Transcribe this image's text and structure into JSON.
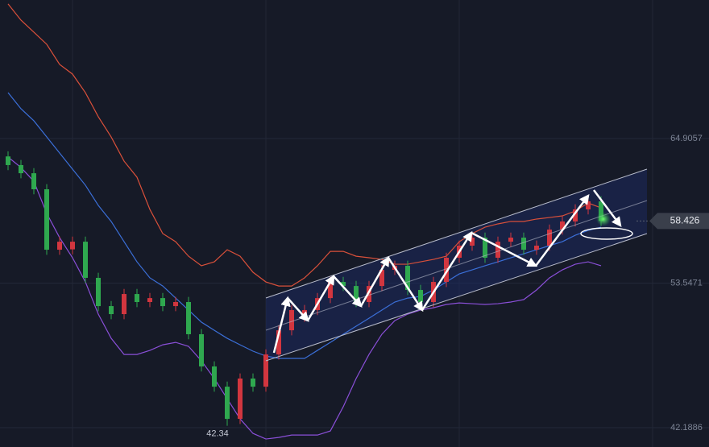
{
  "chart_data": {
    "type": "candlestick",
    "ylim": [
      40.67,
      75.79
    ],
    "yticks": [
      42.1886,
      53.5471,
      64.9057
    ],
    "grid": true,
    "candle_colors": {
      "up": "#d2363f",
      "down": "#2fa84f"
    },
    "candles": [
      [
        63.5,
        63.9,
        62.42,
        62.82
      ],
      [
        62.82,
        63.22,
        61.78,
        62.18
      ],
      [
        62.18,
        62.58,
        60.52,
        60.92
      ],
      [
        60.92,
        61.32,
        55.77,
        56.17
      ],
      [
        56.17,
        57.2,
        55.77,
        56.8
      ],
      [
        56.2,
        57.2,
        55.8,
        56.8
      ],
      [
        56.8,
        57.2,
        53.56,
        53.96
      ],
      [
        53.96,
        54.36,
        51.34,
        51.74
      ],
      [
        51.74,
        52.14,
        50.71,
        51.11
      ],
      [
        51.11,
        53.09,
        50.71,
        52.69
      ],
      [
        52.69,
        53.09,
        51.66,
        52.06
      ],
      [
        52.06,
        52.77,
        51.66,
        52.37
      ],
      [
        52.37,
        52.77,
        51.34,
        51.74
      ],
      [
        51.74,
        52.46,
        51.34,
        52.06
      ],
      [
        52.06,
        52.46,
        49.13,
        49.53
      ],
      [
        49.53,
        49.93,
        46.6,
        47.0
      ],
      [
        47.0,
        47.4,
        45.01,
        45.41
      ],
      [
        45.41,
        45.81,
        42.34,
        42.88
      ],
      [
        42.88,
        46.45,
        42.48,
        46.05
      ],
      [
        46.05,
        46.45,
        45.01,
        45.41
      ],
      [
        45.41,
        48.34,
        45.01,
        47.94
      ],
      [
        47.94,
        50.24,
        47.54,
        49.84
      ],
      [
        49.84,
        51.83,
        49.44,
        51.43
      ],
      [
        50.9,
        51.83,
        50.5,
        51.43
      ],
      [
        51.43,
        52.77,
        51.03,
        52.37
      ],
      [
        52.37,
        54.04,
        51.97,
        53.64
      ],
      [
        53.64,
        54.04,
        52.92,
        53.32
      ],
      [
        53.32,
        53.72,
        51.66,
        52.06
      ],
      [
        52.06,
        53.72,
        51.66,
        53.32
      ],
      [
        53.32,
        54.99,
        52.92,
        54.59
      ],
      [
        54.59,
        55.31,
        54.19,
        54.91
      ],
      [
        54.91,
        55.31,
        52.61,
        53.01
      ],
      [
        53.01,
        53.41,
        51.66,
        52.06
      ],
      [
        52.06,
        54.04,
        51.66,
        53.64
      ],
      [
        53.64,
        55.94,
        53.24,
        55.54
      ],
      [
        55.54,
        56.89,
        55.14,
        56.49
      ],
      [
        56.49,
        57.52,
        56.09,
        57.12
      ],
      [
        57.12,
        57.52,
        55.14,
        55.54
      ],
      [
        55.54,
        57.2,
        55.14,
        56.8
      ],
      [
        56.8,
        57.52,
        56.4,
        57.12
      ],
      [
        57.12,
        57.52,
        55.77,
        56.17
      ],
      [
        56.17,
        56.89,
        55.77,
        56.49
      ],
      [
        56.49,
        58.15,
        56.09,
        57.75
      ],
      [
        57.75,
        58.79,
        57.35,
        58.39
      ],
      [
        58.39,
        59.74,
        57.99,
        59.34
      ],
      [
        59.34,
        60.37,
        58.94,
        59.97
      ],
      [
        59.97,
        60.37,
        58.03,
        58.43
      ]
    ],
    "lines": [
      {
        "color": "#d9503a",
        "values": [
          75.48,
          74.21,
          73.26,
          72.31,
          70.73,
          69.97,
          68.51,
          66.62,
          65.03,
          63.13,
          61.87,
          59.34,
          57.44,
          56.8,
          55.66,
          54.91,
          55.22,
          56.17,
          55.66,
          54.4,
          53.64,
          53.32,
          53.32,
          53.96,
          54.91,
          56.04,
          56.04,
          55.66,
          55.54,
          55.41,
          55.03,
          55.03,
          55.22,
          55.41,
          55.66,
          56.8,
          57.44,
          57.94,
          58.2,
          58.39,
          58.39,
          58.58,
          58.7,
          58.83,
          59.21,
          59.84,
          59.46
        ]
      },
      {
        "color": "#3b6fd8",
        "values": [
          68.51,
          67.25,
          66.3,
          65.03,
          63.77,
          62.5,
          61.24,
          59.65,
          58.39,
          56.8,
          55.22,
          53.96,
          53.32,
          52.37,
          51.43,
          50.48,
          49.84,
          49.21,
          48.7,
          48.2,
          47.82,
          47.63,
          47.63,
          47.63,
          48.26,
          48.89,
          49.53,
          50.16,
          50.79,
          51.43,
          52.06,
          52.37,
          52.5,
          53.01,
          53.64,
          54.27,
          54.59,
          54.91,
          55.22,
          55.54,
          55.85,
          56.17,
          56.49,
          56.8,
          57.31,
          57.69,
          57.94
        ]
      },
      {
        "color": "#8a4fd8",
        "values": [
          63.45,
          62.63,
          61.55,
          59.02,
          57.12,
          55.54,
          53.64,
          51.11,
          49.21,
          47.94,
          47.94,
          48.26,
          48.7,
          48.89,
          48.58,
          47.44,
          46.05,
          44.46,
          42.88,
          41.74,
          41.3,
          41.42,
          41.61,
          41.61,
          41.61,
          41.93,
          43.83,
          46.05,
          47.94,
          49.53,
          50.6,
          51.11,
          51.43,
          51.61,
          51.87,
          51.99,
          51.93,
          51.87,
          51.93,
          52.06,
          52.25,
          53.01,
          53.96,
          54.59,
          55.03,
          55.22,
          54.91
        ]
      }
    ],
    "last_price": 58.426,
    "low_annotation": 42.34,
    "low_annotation_candle": 17
  }
}
